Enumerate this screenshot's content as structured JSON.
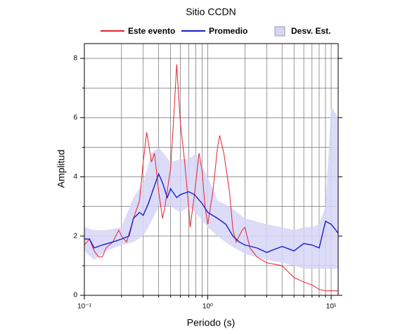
{
  "chart_data": {
    "type": "line",
    "title": "Sitio CCDN",
    "xlabel": "Periodo (s)",
    "ylabel": "Amplitud",
    "xscale": "log",
    "xlim": [
      0.1,
      11.4
    ],
    "ylim": [
      0,
      8.5
    ],
    "xticks": [
      {
        "value": 0.1,
        "label": "10⁻¹"
      },
      {
        "value": 1,
        "label": "10⁰"
      },
      {
        "value": 10,
        "label": "10¹"
      }
    ],
    "xminor": [
      0.2,
      0.3,
      0.4,
      0.5,
      0.6,
      0.7,
      0.8,
      0.9,
      2,
      3,
      4,
      5,
      6,
      7,
      8,
      9
    ],
    "yticks": [
      0,
      2,
      4,
      6,
      8
    ],
    "yminor": [
      1,
      3,
      5,
      7
    ],
    "grid": true,
    "legend": "top",
    "series": [
      {
        "name": "Este evento",
        "color": "#e8202a",
        "x": [
          0.1,
          0.11,
          0.12,
          0.13,
          0.14,
          0.15,
          0.17,
          0.19,
          0.2,
          0.22,
          0.25,
          0.28,
          0.3,
          0.32,
          0.35,
          0.37,
          0.4,
          0.43,
          0.45,
          0.5,
          0.53,
          0.56,
          0.6,
          0.65,
          0.7,
          0.72,
          0.78,
          0.85,
          0.9,
          0.95,
          1.0,
          1.1,
          1.2,
          1.25,
          1.35,
          1.5,
          1.6,
          1.7,
          1.9,
          2.0,
          2.2,
          2.5,
          3,
          4,
          5,
          6,
          7,
          8,
          9,
          10,
          11.4
        ],
        "values": [
          1.7,
          1.9,
          1.5,
          1.3,
          1.3,
          1.6,
          1.8,
          2.2,
          2.0,
          1.8,
          2.6,
          3.2,
          4.5,
          5.5,
          4.5,
          4.8,
          3.5,
          2.6,
          3.0,
          4.3,
          6.0,
          7.8,
          5.8,
          4.5,
          3.0,
          2.3,
          3.4,
          4.8,
          4.2,
          3.0,
          2.4,
          3.5,
          5.0,
          5.4,
          4.8,
          3.5,
          2.2,
          1.8,
          2.2,
          2.3,
          1.6,
          1.3,
          1.1,
          1.0,
          0.6,
          0.45,
          0.35,
          0.2,
          0.15,
          0.15,
          0.15
        ]
      },
      {
        "name": "Promedio",
        "color": "#1c1ccc",
        "x": [
          0.1,
          0.11,
          0.12,
          0.14,
          0.17,
          0.2,
          0.23,
          0.25,
          0.28,
          0.3,
          0.33,
          0.37,
          0.4,
          0.43,
          0.47,
          0.5,
          0.56,
          0.6,
          0.7,
          0.78,
          0.9,
          1.0,
          1.2,
          1.4,
          1.6,
          1.8,
          2.0,
          2.5,
          3,
          4,
          5,
          6,
          7,
          8,
          9,
          10,
          11.4
        ],
        "values": [
          1.9,
          1.9,
          1.6,
          1.7,
          1.8,
          1.9,
          2.0,
          2.6,
          2.8,
          2.7,
          3.1,
          3.7,
          4.1,
          3.8,
          3.3,
          3.6,
          3.3,
          3.4,
          3.5,
          3.4,
          3.1,
          2.8,
          2.6,
          2.4,
          2.0,
          1.8,
          1.7,
          1.6,
          1.45,
          1.65,
          1.5,
          1.75,
          1.7,
          1.6,
          2.5,
          2.4,
          2.1
        ]
      },
      {
        "name": "Desv. Est.",
        "color": "#d6d6f7",
        "x": [
          0.1,
          0.12,
          0.15,
          0.2,
          0.25,
          0.3,
          0.35,
          0.4,
          0.5,
          0.6,
          0.7,
          0.8,
          1,
          1.2,
          1.5,
          2,
          3,
          4,
          5,
          6,
          7,
          8,
          9,
          10,
          11.4
        ],
        "lower": [
          1.5,
          1.2,
          1.5,
          1.7,
          1.8,
          2.0,
          2.5,
          3.0,
          3.0,
          2.8,
          3.0,
          2.8,
          2.3,
          2.0,
          1.7,
          1.4,
          1.2,
          1.1,
          1.0,
          0.9,
          0.9,
          0.9,
          0.9,
          0.9,
          0.9
        ],
        "upper": [
          2.3,
          2.2,
          2.2,
          2.3,
          3.3,
          3.8,
          4.8,
          5.0,
          4.5,
          4.6,
          4.6,
          4.8,
          4.0,
          3.2,
          3.0,
          2.6,
          2.4,
          2.3,
          2.2,
          2.3,
          2.3,
          2.4,
          3.0,
          6.4,
          6.0
        ]
      }
    ]
  }
}
